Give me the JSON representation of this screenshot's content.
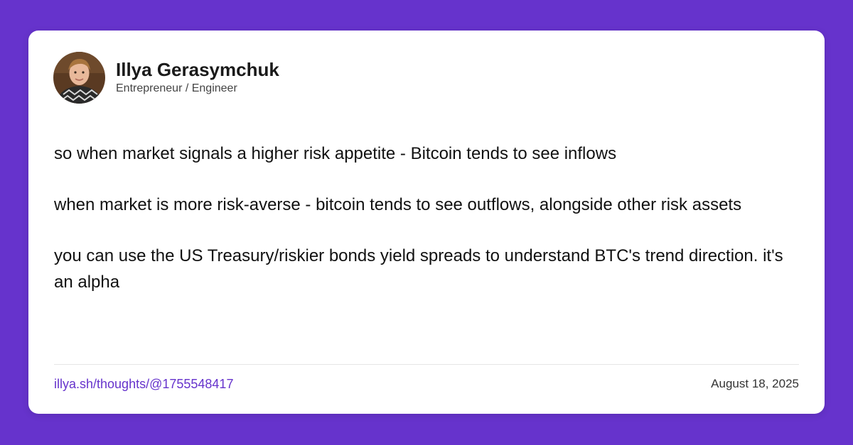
{
  "colors": {
    "background": "#6633cc",
    "card": "#ffffff",
    "link": "#6633cc",
    "text": "#111111"
  },
  "author": {
    "name": "Illya Gerasymchuk",
    "title": "Entrepreneur / Engineer",
    "avatar_icon": "profile-photo"
  },
  "post": {
    "paragraphs": [
      "so when market signals a higher risk appetite - Bitcoin tends to see inflows",
      "when market is more risk-averse - bitcoin tends to see outflows, alongside other risk assets",
      "you can use the US Treasury/riskier bonds yield spreads to understand BTC's trend direction. it's an alpha"
    ]
  },
  "footer": {
    "link_text": "illya.sh/thoughts/@1755548417",
    "date": "August 18, 2025"
  }
}
